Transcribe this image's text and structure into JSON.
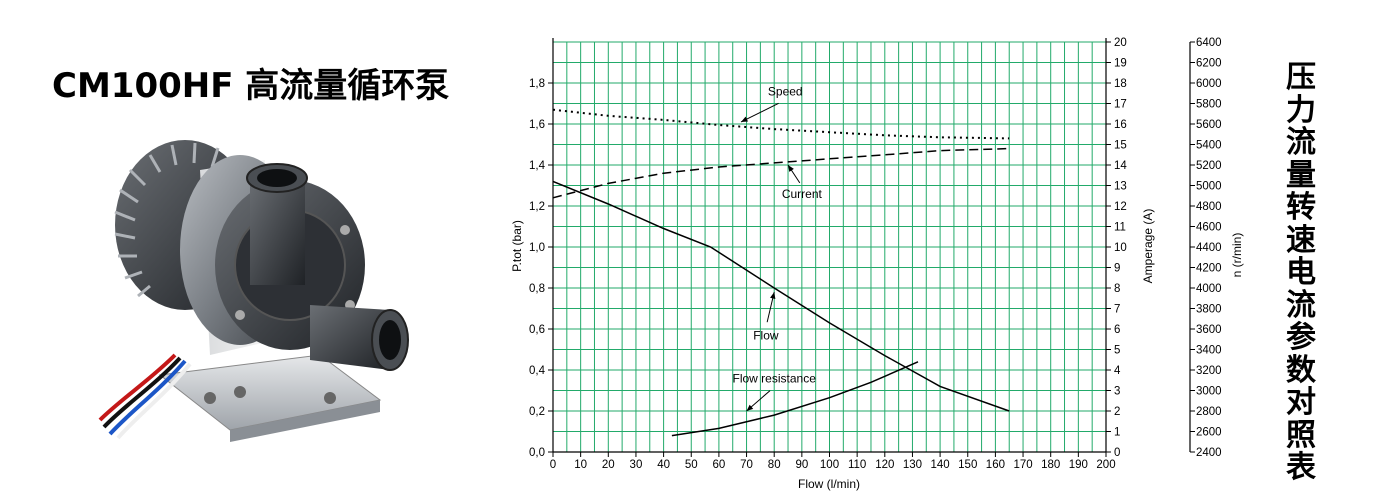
{
  "title": "CM100HF 高流量循环泵",
  "side_title": "压力流量转速电流参数对照表",
  "colors": {
    "grid": "#22aa6a",
    "axis": "#000000",
    "curve": "#000000"
  },
  "chart_data": {
    "type": "line",
    "xlabel": "Flow (l/min)",
    "ylabel_left": "P.tot (bar)",
    "ylabel_right1": "Amperage (A)",
    "ylabel_right2": "n (r/min)",
    "xlim": [
      0,
      200
    ],
    "ylim_left": [
      0,
      2.0
    ],
    "ylim_right1": [
      0,
      20
    ],
    "ylim_right2": [
      2400,
      6400
    ],
    "x_ticks": [
      "0",
      "10",
      "20",
      "30",
      "40",
      "50",
      "60",
      "70",
      "80",
      "90",
      "100",
      "110",
      "120",
      "130",
      "140",
      "150",
      "160",
      "170",
      "180",
      "190",
      "200"
    ],
    "y_left_ticks": [
      "0,0",
      "0,2",
      "0,4",
      "0,6",
      "0,8",
      "1,0",
      "1,2",
      "1,4",
      "1,6",
      "1,8"
    ],
    "y_right1_ticks": [
      "0",
      "1",
      "2",
      "3",
      "4",
      "5",
      "6",
      "7",
      "8",
      "9",
      "10",
      "11",
      "12",
      "13",
      "14",
      "15",
      "16",
      "17",
      "18",
      "19",
      "20"
    ],
    "y_right2_ticks": [
      "2400",
      "2600",
      "2800",
      "3000",
      "3200",
      "3400",
      "3600",
      "3800",
      "4000",
      "4200",
      "4400",
      "4600",
      "4800",
      "5000",
      "5200",
      "5400",
      "5600",
      "5800",
      "6000",
      "6200",
      "6400"
    ],
    "grid": true,
    "series": [
      {
        "name": "Flow",
        "axis": "left",
        "style": "solid",
        "x": [
          0,
          20,
          40,
          57,
          80,
          100,
          120,
          140,
          165
        ],
        "y": [
          1.32,
          1.21,
          1.09,
          1.0,
          0.8,
          0.63,
          0.47,
          0.32,
          0.2
        ]
      },
      {
        "name": "Flow resistance",
        "axis": "left",
        "style": "solid",
        "x": [
          43,
          60,
          80,
          100,
          115,
          132
        ],
        "y": [
          0.08,
          0.115,
          0.18,
          0.265,
          0.34,
          0.44
        ]
      },
      {
        "name": "Current",
        "axis": "right1",
        "style": "dashed",
        "x": [
          0,
          20,
          40,
          60,
          80,
          100,
          120,
          140,
          165
        ],
        "y": [
          12.4,
          13.1,
          13.6,
          13.9,
          14.1,
          14.3,
          14.5,
          14.7,
          14.8
        ]
      },
      {
        "name": "Speed",
        "axis": "right2",
        "style": "dotted",
        "x": [
          0,
          20,
          40,
          60,
          80,
          100,
          120,
          140,
          165
        ],
        "y": [
          5740,
          5680,
          5640,
          5590,
          5550,
          5520,
          5490,
          5470,
          5460
        ]
      }
    ],
    "annotations": [
      {
        "text": "Speed",
        "x": 84,
        "y": 1.74,
        "axis": "left",
        "arrow_to": [
          68,
          1.61
        ]
      },
      {
        "text": "Current",
        "x": 90,
        "y": 1.24,
        "axis": "left",
        "arrow_to": [
          85,
          1.4
        ]
      },
      {
        "text": "Flow",
        "x": 77,
        "y": 0.55,
        "axis": "left",
        "arrow_to": [
          80,
          0.78
        ]
      },
      {
        "text": "Flow resistance",
        "x": 80,
        "y": 0.34,
        "axis": "left",
        "arrow_to": [
          70,
          0.2
        ]
      }
    ]
  }
}
